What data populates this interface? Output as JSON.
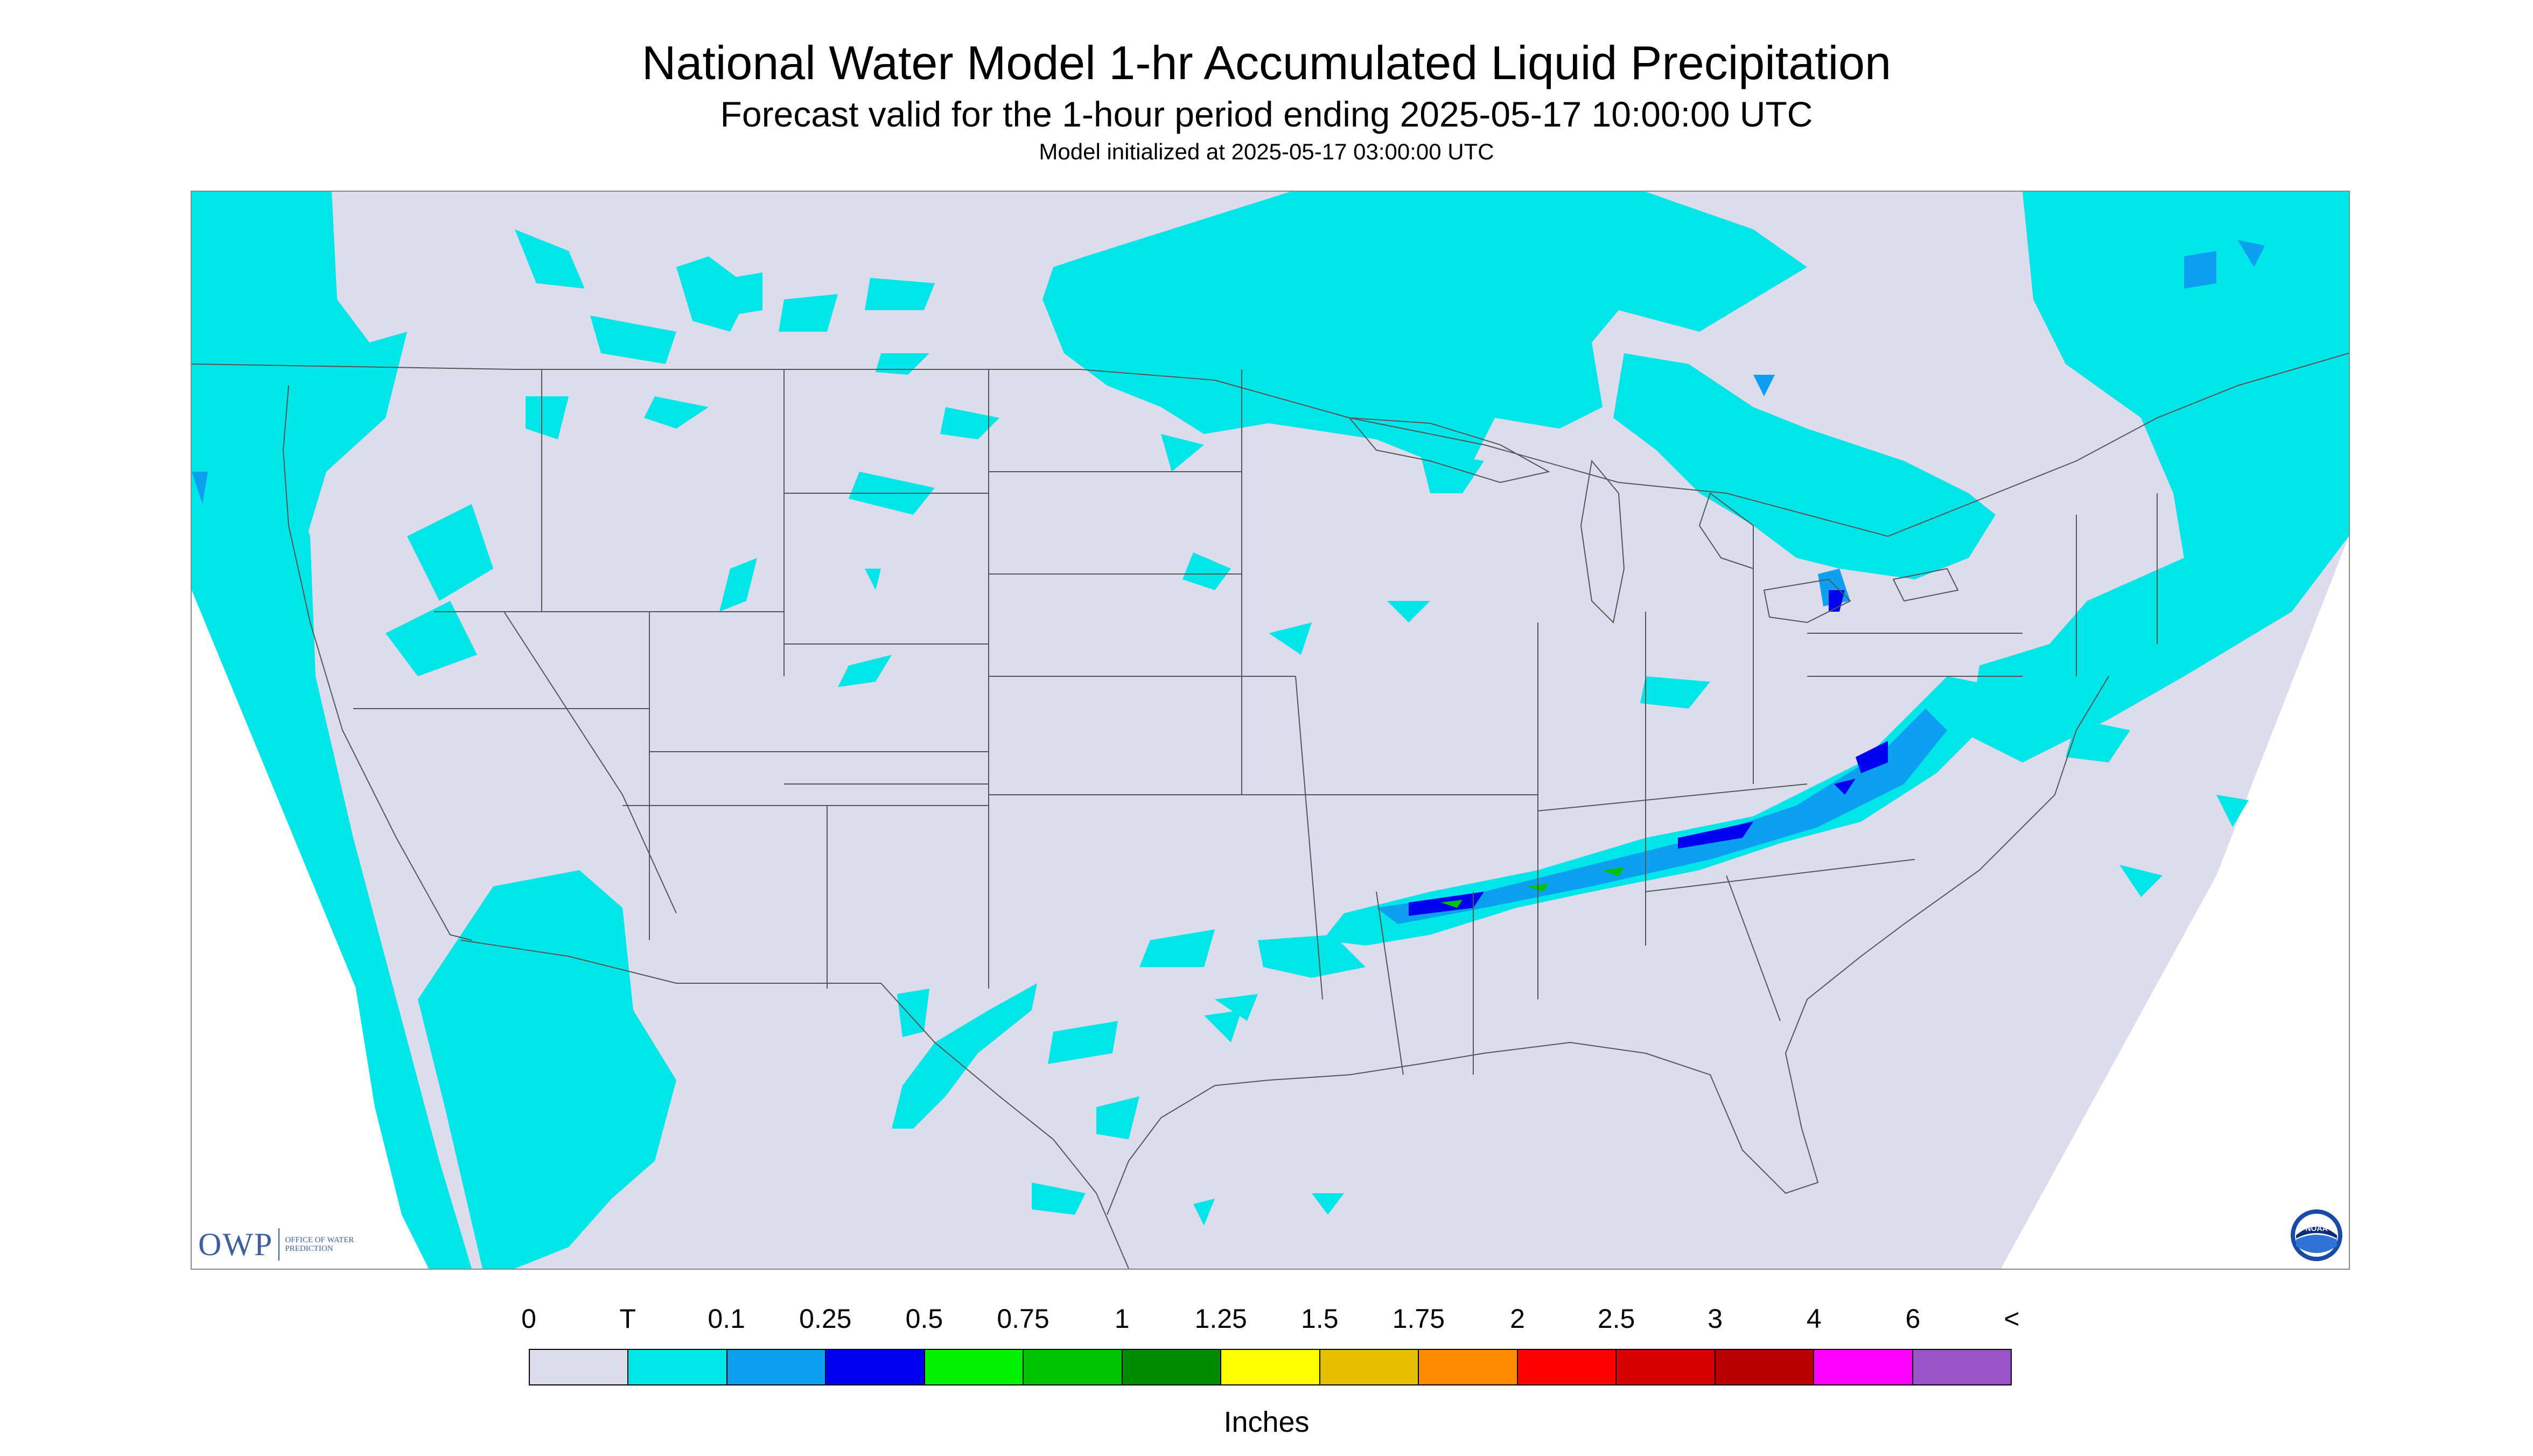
{
  "header": {
    "title": "National Water Model 1-hr Accumulated Liquid Precipitation",
    "subtitle": "Forecast valid for the 1-hour period ending 2025-05-17 10:00:00 UTC",
    "init": "Model initialized at 2025-05-17 03:00:00 UTC"
  },
  "logos": {
    "owp_letters": "OWP",
    "owp_sub": "OFFICE OF WATER PREDICTION",
    "noaa_text": "NOAA"
  },
  "legend": {
    "labels": [
      "0",
      "T",
      "0.1",
      "0.25",
      "0.5",
      "0.75",
      "1",
      "1.25",
      "1.5",
      "1.75",
      "2",
      "2.5",
      "3",
      "4",
      "6",
      "<"
    ],
    "colors": [
      "#dcdcec",
      "#00e5e8",
      "#0d9ff0",
      "#0000f0",
      "#00f200",
      "#00c400",
      "#008a00",
      "#ffff00",
      "#e6bf00",
      "#ff8c00",
      "#ff0000",
      "#d60000",
      "#b80000",
      "#ff00ff",
      "#9955c8"
    ],
    "units": "Inches"
  },
  "colors": {
    "background": "#dcdcec",
    "trace": "#00e5e8",
    "light_blue": "#0d9ff0",
    "blue": "#0000f0",
    "green": "#00c400",
    "border_lines": "#555555"
  }
}
